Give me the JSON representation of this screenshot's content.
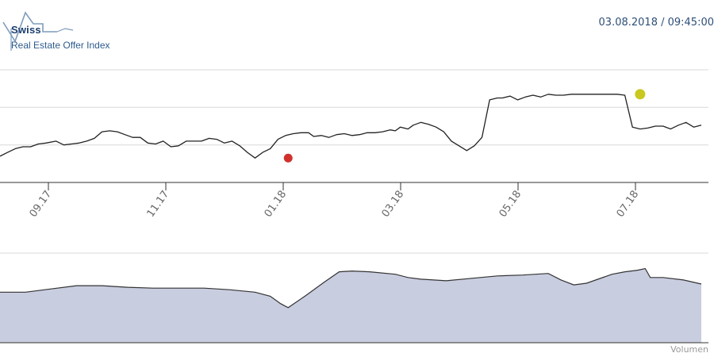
{
  "header": {
    "logo_title": "Swiss",
    "logo_subtitle": "Real Estate Offer Index",
    "timestamp": "03.08.2018 / 09:45:00"
  },
  "icons": {
    "logo": "house-outline-icon"
  },
  "colors": {
    "line": "#222222",
    "low_marker": "#d0312d",
    "high_marker": "#c8c81e",
    "volume_fill": "#c9cde0",
    "volume_line": "#333333",
    "grid": "#d8d8d8",
    "axis": "#333333",
    "logo": "#2e5b8c"
  },
  "chart_data": [
    {
      "type": "line",
      "title": "",
      "xlabel": "",
      "ylabel": "",
      "x_tick_labels": [
        "09.17",
        "11.17",
        "01.18",
        "03.18",
        "05.18",
        "07.18"
      ],
      "x": [
        0,
        3,
        6,
        9,
        12,
        15,
        18,
        22,
        25,
        28,
        31,
        34,
        37,
        40,
        43,
        46,
        49,
        52,
        55,
        58,
        61,
        64,
        67,
        70,
        73,
        76,
        79,
        82,
        85,
        88,
        91,
        94,
        97,
        100,
        103,
        106,
        109,
        112,
        115,
        118,
        121,
        123,
        126,
        129,
        132,
        135,
        138,
        141,
        144,
        147,
        150,
        153,
        155,
        157,
        160,
        162,
        165,
        168,
        171,
        174,
        177,
        180,
        183,
        186,
        189,
        192,
        195,
        197,
        200,
        203,
        206,
        209,
        212,
        215,
        218,
        221,
        224,
        227,
        230,
        233,
        236,
        239,
        242,
        245,
        248,
        251,
        254,
        257,
        260,
        263,
        266,
        269,
        272,
        275
      ],
      "series": [
        {
          "values": [
            -1.7,
            -1.3,
            -0.9,
            -0.7,
            -0.7,
            -0.4,
            -0.3,
            -0.1,
            -0.5,
            -0.4,
            -0.3,
            -0.1,
            0.2,
            0.9,
            1.0,
            0.9,
            0.6,
            0.3,
            0.3,
            -0.3,
            -0.4,
            -0.1,
            -0.7,
            -0.6,
            -0.1,
            -0.1,
            -0.1,
            0.2,
            0.1,
            -0.3,
            -0.1,
            -0.6,
            -1.3,
            -1.9,
            -1.3,
            -0.9,
            0.1,
            0.5,
            0.7,
            0.8,
            0.8,
            0.4,
            0.5,
            0.3,
            0.6,
            0.7,
            0.5,
            0.6,
            0.8,
            0.8,
            0.9,
            1.1,
            1.0,
            1.4,
            1.2,
            1.6,
            1.9,
            1.7,
            1.4,
            0.9,
            -0.1,
            -0.6,
            -1.1,
            -0.6,
            0.3,
            4.3,
            4.5,
            4.5,
            4.7,
            4.3,
            4.6,
            4.8,
            4.6,
            4.9,
            4.8,
            4.8,
            4.9,
            4.9,
            4.9,
            4.9,
            4.9,
            4.9,
            4.9,
            4.8,
            1.4,
            1.2,
            1.3,
            1.5,
            1.5,
            1.2,
            1.6,
            1.9,
            1.4,
            1.6
          ],
          "low_point": {
            "x": 113,
            "y": -1.9
          },
          "high_point": {
            "x": 251,
            "y": 4.9
          }
        }
      ],
      "ylim": [
        -4.5,
        7.5
      ],
      "grid": true,
      "legend": "none"
    },
    {
      "type": "area",
      "title": "",
      "xlabel": "",
      "ylabel": "Volumen",
      "x": [
        0,
        10,
        20,
        30,
        40,
        50,
        60,
        70,
        80,
        90,
        100,
        106,
        110,
        113,
        120,
        127,
        133,
        138,
        145,
        155,
        160,
        165,
        175,
        185,
        195,
        205,
        215,
        220,
        225,
        230,
        240,
        245,
        250,
        253,
        255,
        260,
        268,
        275
      ],
      "values": [
        62,
        62,
        66,
        70,
        70,
        68,
        67,
        67,
        67,
        65,
        62,
        57,
        48,
        43,
        58,
        74,
        87,
        88,
        87,
        84,
        80,
        78,
        76,
        79,
        82,
        83,
        85,
        77,
        71,
        73,
        84,
        87,
        89,
        91,
        80,
        80,
        77,
        72
      ],
      "ylim": [
        0,
        110
      ],
      "grid": true,
      "legend": "none"
    }
  ]
}
